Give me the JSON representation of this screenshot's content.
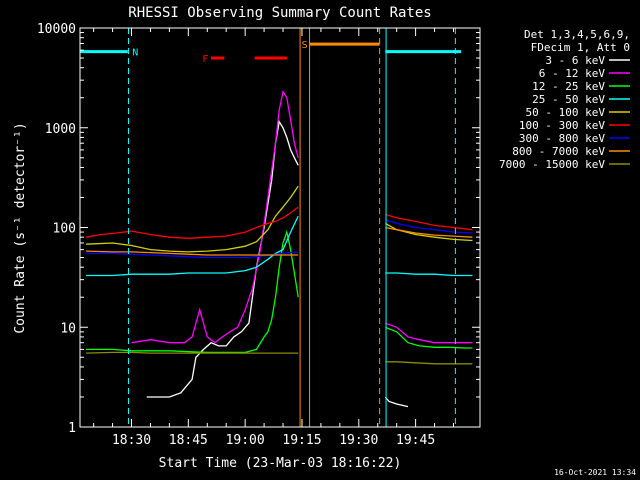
{
  "chart_data": {
    "type": "line",
    "title": "RHESSI Observing Summary Count Rates",
    "xlabel": "Start Time (23-Mar-03 18:16:22)",
    "ylabel": "Count Rate (s⁻¹ detector⁻¹)",
    "ylim": [
      1,
      10000
    ],
    "yscale": "log",
    "x_ticks": [
      "18:30",
      "18:45",
      "19:00",
      "19:15",
      "19:30",
      "19:45"
    ],
    "x_tick_minutes": [
      30,
      45,
      60,
      75,
      90,
      105
    ],
    "xlim_minutes": [
      16.4,
      122
    ],
    "y_ticks": [
      "1",
      "10",
      "100",
      "1000",
      "10000"
    ],
    "y_tick_values": [
      1,
      10,
      100,
      1000,
      10000
    ],
    "legend": {
      "placement": "right",
      "header": [
        "Det 1,3,4,5,6,9,",
        "FDecim 1, Att 0"
      ],
      "entries": [
        {
          "label": "3 - 6 keV",
          "color": "#ffffff"
        },
        {
          "label": "6 - 12 keV",
          "color": "#ff00ff"
        },
        {
          "label": "12 - 25 keV",
          "color": "#00ff00"
        },
        {
          "label": "25 - 50 keV",
          "color": "#00ffff"
        },
        {
          "label": "50 - 100 keV",
          "color": "#d2d200"
        },
        {
          "label": "100 - 300 keV",
          "color": "#ff0000"
        },
        {
          "label": "300 - 800 keV",
          "color": "#0000ff"
        },
        {
          "label": "800 - 7000 keV",
          "color": "#ff8c00"
        },
        {
          "label": "7000 - 15000 keV",
          "color": "#8c8c00"
        }
      ]
    },
    "annotations": [
      {
        "label": "N",
        "color": "#00ffff"
      },
      {
        "label": "F",
        "color": "#ff0000"
      },
      {
        "label": "S",
        "color": "#ff8c00"
      }
    ],
    "series": [
      {
        "name": "3 - 6 keV",
        "color": "#ffffff",
        "x": [
          34,
          37,
          40,
          43,
          46,
          47,
          49,
          51,
          53,
          55,
          57,
          59,
          61,
          63,
          65,
          67,
          68,
          69,
          70,
          71,
          72,
          73,
          74
        ],
        "y": [
          2,
          2,
          2,
          2.2,
          3,
          5,
          6,
          7,
          6.5,
          6.5,
          8,
          9,
          11,
          40,
          100,
          300,
          700,
          1150,
          1000,
          800,
          600,
          500,
          420
        ]
      },
      {
        "name": "6 - 12 keV",
        "color": "#ff00ff",
        "x": [
          30,
          35,
          40,
          44,
          46,
          48,
          50,
          52,
          54,
          56,
          58,
          60,
          62,
          64,
          66,
          68,
          69,
          70,
          71,
          72,
          73,
          74
        ],
        "y": [
          7,
          7.5,
          7,
          7,
          8,
          15,
          8,
          7,
          8,
          9,
          10,
          15,
          25,
          60,
          200,
          700,
          1500,
          2300,
          2000,
          1200,
          700,
          500
        ]
      },
      {
        "name": "12 - 25 keV",
        "color": "#00ff00",
        "x": [
          18,
          25,
          30,
          35,
          40,
          45,
          50,
          55,
          60,
          63,
          65,
          66,
          67,
          68,
          69,
          70,
          71,
          72,
          73,
          74
        ],
        "y": [
          6,
          6,
          5.8,
          5.8,
          5.8,
          5.7,
          5.6,
          5.6,
          5.6,
          6,
          8,
          9,
          12,
          20,
          40,
          70,
          90,
          60,
          35,
          20
        ]
      },
      {
        "name": "25 - 50 keV",
        "color": "#00ffff",
        "x": [
          18,
          25,
          30,
          35,
          40,
          45,
          50,
          55,
          60,
          63,
          66,
          68,
          70,
          72,
          74
        ],
        "y": [
          33,
          33,
          34,
          34,
          34,
          35,
          35,
          35,
          37,
          40,
          48,
          55,
          60,
          90,
          130
        ]
      },
      {
        "name": "50 - 100 keV",
        "color": "#d2d200",
        "x": [
          18,
          25,
          30,
          35,
          40,
          45,
          50,
          55,
          60,
          63,
          66,
          68,
          70,
          72,
          74
        ],
        "y": [
          68,
          70,
          66,
          60,
          58,
          57,
          58,
          60,
          65,
          72,
          95,
          130,
          160,
          200,
          260
        ]
      },
      {
        "name": "100 - 300 keV",
        "color": "#ff0000",
        "x": [
          18,
          22,
          26,
          30,
          35,
          40,
          45,
          50,
          55,
          60,
          63,
          66,
          68,
          70,
          72,
          74
        ],
        "y": [
          80,
          85,
          88,
          92,
          85,
          80,
          78,
          80,
          82,
          90,
          100,
          110,
          115,
          125,
          140,
          160
        ]
      },
      {
        "name": "300 - 800 keV",
        "color": "#0000ff",
        "x": [
          18,
          25,
          30,
          35,
          40,
          45,
          50,
          55,
          60,
          65,
          70,
          74
        ],
        "y": [
          55,
          55,
          54,
          53,
          52,
          51,
          50,
          50,
          50,
          52,
          55,
          57
        ]
      },
      {
        "name": "800 - 7000 keV",
        "color": "#ff8c00",
        "x": [
          18,
          25,
          30,
          35,
          40,
          45,
          50,
          55,
          60,
          65,
          70,
          74
        ],
        "y": [
          58,
          57,
          57,
          56,
          55,
          54,
          53,
          53,
          53,
          53,
          53,
          53
        ]
      },
      {
        "name": "7000 - 15000 keV",
        "color": "#8c8c00",
        "x": [
          18,
          25,
          30,
          35,
          40,
          45,
          50,
          55,
          60,
          65,
          70,
          74
        ],
        "y": [
          5.5,
          5.6,
          5.6,
          5.5,
          5.5,
          5.5,
          5.5,
          5.5,
          5.5,
          5.5,
          5.5,
          5.5
        ]
      },
      {
        "name": "3 - 6 keV",
        "color": "#ffffff",
        "x": [
          97,
          98,
          100,
          103
        ],
        "y": [
          2,
          1.8,
          1.7,
          1.6
        ]
      },
      {
        "name": "6 - 12 keV",
        "color": "#ff00ff",
        "x": [
          97,
          100,
          103,
          106,
          110,
          114,
          118,
          120
        ],
        "y": [
          11,
          10,
          8,
          7.5,
          7,
          7,
          7,
          7
        ]
      },
      {
        "name": "12 - 25 keV",
        "color": "#00ff00",
        "x": [
          97,
          100,
          103,
          106,
          110,
          114,
          118,
          120
        ],
        "y": [
          10,
          9,
          7,
          6.5,
          6.3,
          6.3,
          6.2,
          6.2
        ]
      },
      {
        "name": "25 - 50 keV",
        "color": "#00ffff",
        "x": [
          97,
          100,
          105,
          110,
          115,
          120
        ],
        "y": [
          35,
          35,
          34,
          34,
          33,
          33
        ]
      },
      {
        "name": "50 - 100 keV",
        "color": "#d2d200",
        "x": [
          97,
          100,
          105,
          110,
          115,
          120
        ],
        "y": [
          110,
          95,
          85,
          80,
          76,
          74
        ]
      },
      {
        "name": "100 - 300 keV",
        "color": "#ff0000",
        "x": [
          97,
          100,
          105,
          110,
          115,
          120
        ],
        "y": [
          135,
          125,
          115,
          105,
          100,
          95
        ]
      },
      {
        "name": "300 - 800 keV",
        "color": "#0000ff",
        "x": [
          97,
          100,
          105,
          110,
          115,
          120
        ],
        "y": [
          120,
          110,
          100,
          95,
          90,
          88
        ]
      },
      {
        "name": "800 - 7000 keV",
        "color": "#ff8c00",
        "x": [
          97,
          100,
          105,
          110,
          115,
          120
        ],
        "y": [
          100,
          95,
          88,
          84,
          82,
          80
        ]
      },
      {
        "name": "7000 - 15000 keV",
        "color": "#8c8c00",
        "x": [
          97,
          100,
          105,
          110,
          115,
          120
        ],
        "y": [
          4.5,
          4.5,
          4.4,
          4.3,
          4.3,
          4.3
        ]
      }
    ],
    "flag_bars": [
      {
        "label": "N",
        "color": "#00ffff",
        "x": [
          16.4,
          29
        ],
        "y": 5800
      },
      {
        "label": "N",
        "color": "#00ffff",
        "x": [
          97,
          117
        ],
        "y": 5800
      },
      {
        "label": "F",
        "color": "#ff0000",
        "x": [
          51,
          54.5
        ],
        "y": 5000
      },
      {
        "label": "F",
        "color": "#ff0000",
        "x": [
          62.5,
          71
        ],
        "y": 5000
      },
      {
        "label": "S",
        "color": "#ff8c00",
        "x": [
          77,
          95.5
        ],
        "y": 6900
      }
    ],
    "markers": [
      {
        "color": "#00ffff",
        "x": 16.4,
        "style": "solid"
      },
      {
        "color": "#00ffff",
        "x": 29.2,
        "style": "dashed"
      },
      {
        "color": "#ff8c00",
        "x": 74.5,
        "style": "solid"
      },
      {
        "color": "#ff8c00",
        "x": 77,
        "style": "solid"
      },
      {
        "color": "#ff8c00",
        "x": 95.5,
        "style": "dashed"
      },
      {
        "color": "#00ffff",
        "x": 97.2,
        "style": "solid"
      },
      {
        "color": "#00ffff",
        "x": 115.5,
        "style": "dashed"
      }
    ]
  },
  "footer": {
    "timestamp": "16-Oct-2021 13:34"
  }
}
